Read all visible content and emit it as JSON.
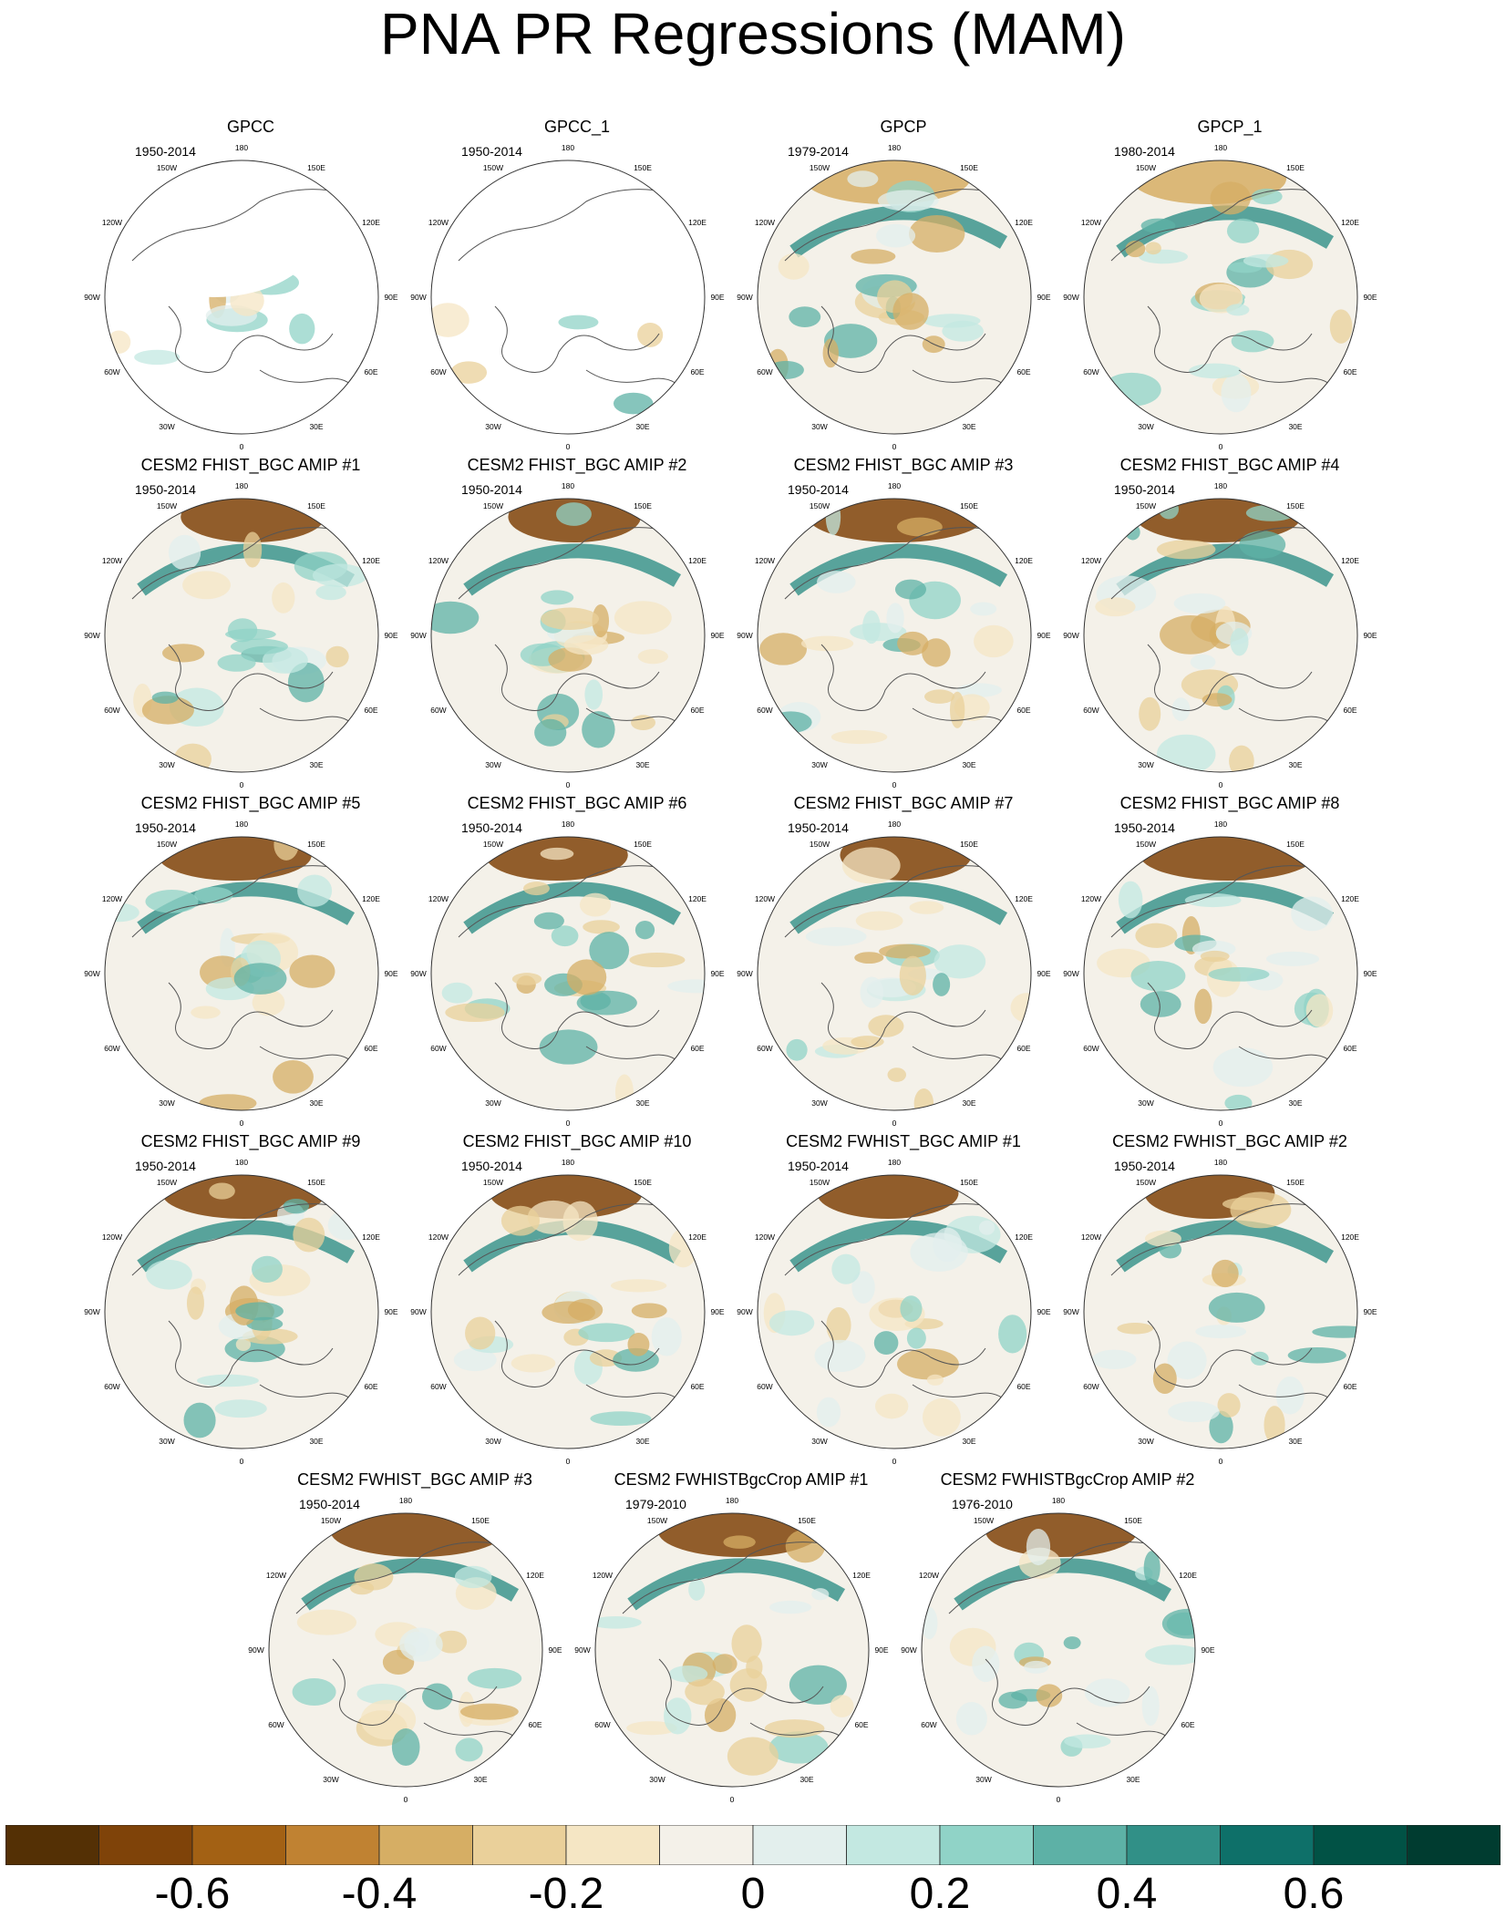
{
  "title": "PNA PR Regressions (MAM)",
  "map_labels": {
    "lon_180": "180",
    "lon_150e": "150E",
    "lon_120e": "120E",
    "lon_90e": "90E",
    "lon_60e": "60E",
    "lon_30e": "30E",
    "lon_0": "0",
    "lon_30w": "30W",
    "lon_60w": "60W",
    "lon_90w": "90W",
    "lon_120w": "120W",
    "lon_150w": "150W"
  },
  "panels": [
    {
      "title": "GPCC",
      "years": "1950-2014"
    },
    {
      "title": "GPCC_1",
      "years": "1950-2014"
    },
    {
      "title": "GPCP",
      "years": "1979-2014"
    },
    {
      "title": "GPCP_1",
      "years": "1980-2014"
    },
    {
      "title": "CESM2 FHIST_BGC AMIP #1",
      "years": "1950-2014"
    },
    {
      "title": "CESM2 FHIST_BGC AMIP #2",
      "years": "1950-2014"
    },
    {
      "title": "CESM2 FHIST_BGC AMIP #3",
      "years": "1950-2014"
    },
    {
      "title": "CESM2 FHIST_BGC AMIP #4",
      "years": "1950-2014"
    },
    {
      "title": "CESM2 FHIST_BGC AMIP #5",
      "years": "1950-2014"
    },
    {
      "title": "CESM2 FHIST_BGC AMIP #6",
      "years": "1950-2014"
    },
    {
      "title": "CESM2 FHIST_BGC AMIP #7",
      "years": "1950-2014"
    },
    {
      "title": "CESM2 FHIST_BGC AMIP #8",
      "years": "1950-2014"
    },
    {
      "title": "CESM2 FHIST_BGC AMIP #9",
      "years": "1950-2014"
    },
    {
      "title": "CESM2 FHIST_BGC AMIP #10",
      "years": "1950-2014"
    },
    {
      "title": "CESM2 FWHIST_BGC AMIP #1",
      "years": "1950-2014"
    },
    {
      "title": "CESM2 FWHIST_BGC AMIP #2",
      "years": "1950-2014"
    },
    {
      "title": "CESM2 FWHIST_BGC AMIP #3",
      "years": "1950-2014"
    },
    {
      "title": "CESM2 FWHISTBgcCrop AMIP #1",
      "years": "1979-2010"
    },
    {
      "title": "CESM2 FWHISTBgcCrop AMIP #2",
      "years": "1976-2010"
    }
  ],
  "colorbar": {
    "colors": [
      "#543005",
      "#7f4309",
      "#a36114",
      "#c08232",
      "#d6ae64",
      "#ead09a",
      "#f5e6c4",
      "#f4f1e9",
      "#e3efed",
      "#c3e8e1",
      "#90d3c7",
      "#5db1a6",
      "#319087",
      "#0e7069",
      "#015245",
      "#003c30"
    ],
    "ticks": [
      {
        "value": -0.6,
        "label": "-0.6"
      },
      {
        "value": -0.4,
        "label": "-0.4"
      },
      {
        "value": -0.2,
        "label": "-0.2"
      },
      {
        "value": 0,
        "label": "0"
      },
      {
        "value": 0.2,
        "label": "0.2"
      },
      {
        "value": 0.4,
        "label": "0.4"
      },
      {
        "value": 0.6,
        "label": "0.6"
      }
    ],
    "range": [
      -0.8,
      0.8
    ]
  }
}
